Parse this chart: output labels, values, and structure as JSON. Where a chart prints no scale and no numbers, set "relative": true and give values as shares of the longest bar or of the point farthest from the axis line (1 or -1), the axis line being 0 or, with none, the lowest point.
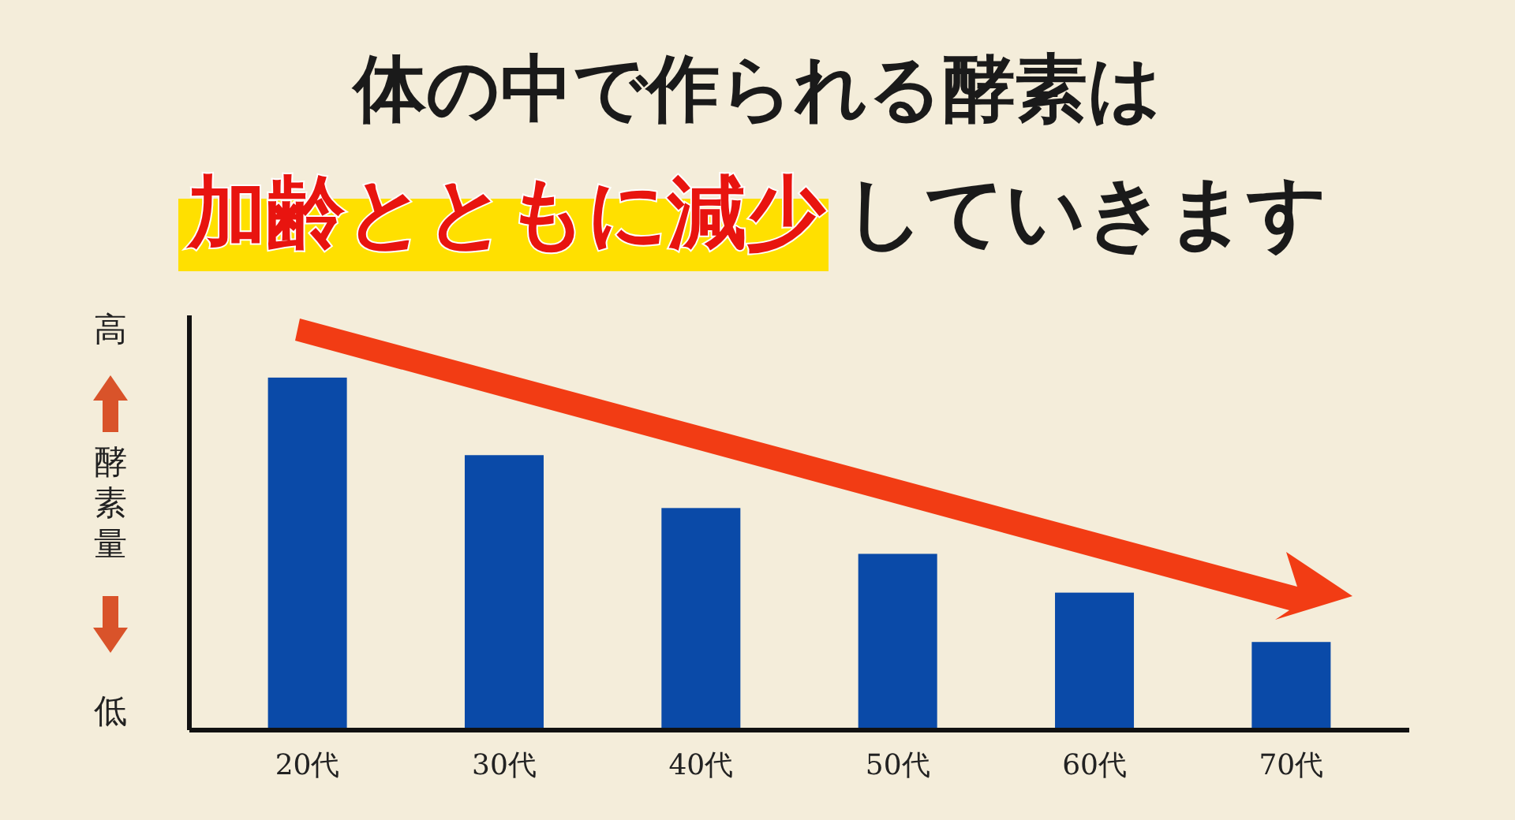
{
  "chart_data": {
    "type": "bar",
    "title": "体の中で作られる酵素は",
    "subtitle": "加齢とともに減少していきます",
    "ylabel": "酵素量",
    "annotations": [
      "高",
      "低"
    ],
    "categories": [
      "20代",
      "30代",
      "40代",
      "50代",
      "60代",
      "70代"
    ],
    "values": [
      1,
      0.78,
      0.63,
      0.5,
      0.39,
      0.25
    ],
    "color": "#0a4aa8",
    "relative": true
  }
}
